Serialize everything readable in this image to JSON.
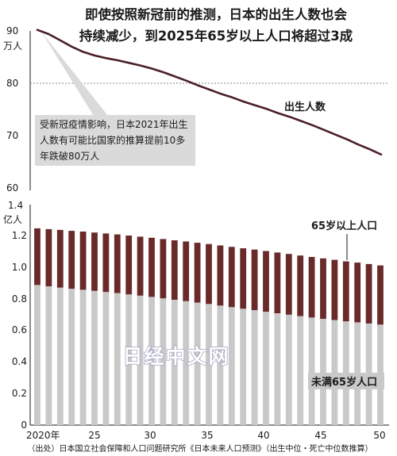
{
  "title": [
    "即使按照新冠前的推测，日本的出生人数也会",
    "持续减少，到2025年65岁以上人口将超过3成"
  ],
  "colors": {
    "births_line": "#4b1f26",
    "elderly_bar": "#6a2a2a",
    "younger_bar": "#c9c9c9",
    "annotation_box": "#dadada",
    "reference_line": "#8a8a8a"
  },
  "chart_data": [
    {
      "type": "line",
      "unit_label": [
        "90",
        "万人"
      ],
      "yticks": [
        "80",
        "70",
        "60"
      ],
      "ylim": [
        60,
        91.5
      ],
      "xlim": [
        2020,
        2050
      ],
      "reference_line": 80,
      "series": [
        {
          "name": "出生人数",
          "x": [
            2020,
            2021,
            2022,
            2023,
            2024,
            2025,
            2026,
            2027,
            2028,
            2029,
            2030,
            2031,
            2032,
            2033,
            2034,
            2035,
            2036,
            2037,
            2038,
            2039,
            2040,
            2041,
            2042,
            2043,
            2044,
            2045,
            2046,
            2047,
            2048,
            2049,
            2050
          ],
          "values": [
            90.2,
            89.4,
            88.2,
            87.0,
            86.0,
            85.3,
            84.8,
            84.4,
            83.9,
            83.4,
            82.8,
            82.1,
            81.3,
            80.5,
            79.6,
            78.8,
            78.0,
            77.3,
            76.5,
            75.8,
            75.1,
            74.3,
            73.6,
            72.8,
            72.0,
            71.1,
            70.2,
            69.3,
            68.3,
            67.4,
            66.4
          ]
        }
      ],
      "annotation": [
        "受新冠疫情影响，日本2021年出生",
        "人数有可能比国家的推算提前10多",
        "年跌破80万人"
      ]
    },
    {
      "type": "bar",
      "unit_label": [
        "1.4",
        "亿人"
      ],
      "yticks": [
        "1.2",
        "1.0",
        "0.8",
        "0.6",
        "0.4",
        "0.2",
        "0"
      ],
      "ylim": [
        0,
        1.4
      ],
      "categories": [
        2020,
        2021,
        2022,
        2023,
        2024,
        2025,
        2026,
        2027,
        2028,
        2029,
        2030,
        2031,
        2032,
        2033,
        2034,
        2035,
        2036,
        2037,
        2038,
        2039,
        2040,
        2041,
        2042,
        2043,
        2044,
        2045,
        2046,
        2047,
        2048,
        2049,
        2050
      ],
      "xticks": [
        "2020年",
        "25",
        "30",
        "35",
        "40",
        "45",
        "50"
      ],
      "series": [
        {
          "name": "未满65岁人口",
          "values": [
            0.89,
            0.882,
            0.874,
            0.866,
            0.859,
            0.852,
            0.845,
            0.838,
            0.83,
            0.822,
            0.814,
            0.805,
            0.796,
            0.787,
            0.778,
            0.769,
            0.759,
            0.749,
            0.739,
            0.73,
            0.72,
            0.71,
            0.701,
            0.692,
            0.683,
            0.675,
            0.667,
            0.659,
            0.652,
            0.645,
            0.638
          ]
        },
        {
          "name": "65岁以上人口",
          "values": [
            0.36,
            0.363,
            0.366,
            0.368,
            0.37,
            0.371,
            0.372,
            0.373,
            0.374,
            0.375,
            0.376,
            0.377,
            0.378,
            0.379,
            0.38,
            0.381,
            0.382,
            0.383,
            0.384,
            0.385,
            0.386,
            0.386,
            0.386,
            0.385,
            0.385,
            0.384,
            0.383,
            0.381,
            0.38,
            0.378,
            0.376
          ]
        }
      ]
    }
  ],
  "watermark": "日经中文网",
  "source": "（出处）日本国立社会保障和人口问题研究所《日本未来人口预测》（出生中位・死亡中位数推算）"
}
